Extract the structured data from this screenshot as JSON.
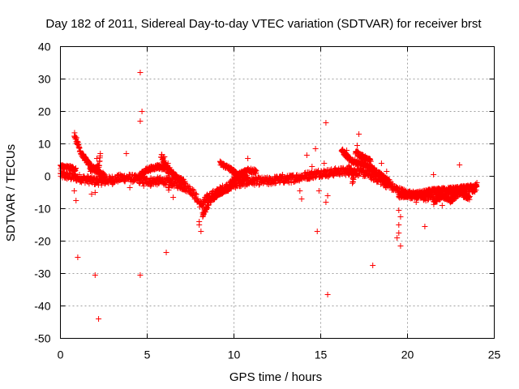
{
  "chart_data": {
    "type": "scatter",
    "title": "Day 182 of 2011, Sidereal Day-to-day VTEC variation (SDTVAR) for receiver brst",
    "xlabel": "GPS time / hours",
    "ylabel": "SDTVAR / TECUs",
    "xlim": [
      0,
      25
    ],
    "ylim": [
      -50,
      40
    ],
    "xticks": [
      0,
      5,
      10,
      15,
      20,
      25
    ],
    "yticks": [
      -50,
      -40,
      -30,
      -20,
      -10,
      0,
      10,
      20,
      30,
      40
    ],
    "grid": true,
    "marker": "+",
    "color": "#ff0000",
    "series": [
      {
        "name": "SDTVAR",
        "trend": [
          [
            0.0,
            0.5
          ],
          [
            0.5,
            0.0
          ],
          [
            1.0,
            -0.5
          ],
          [
            1.5,
            -1.0
          ],
          [
            2.0,
            -1.5
          ],
          [
            2.5,
            -1.5
          ],
          [
            3.0,
            -1.0
          ],
          [
            3.5,
            -0.5
          ],
          [
            4.0,
            -0.5
          ],
          [
            4.5,
            -1.0
          ],
          [
            5.0,
            -1.5
          ],
          [
            5.5,
            -1.5
          ],
          [
            6.0,
            -1.5
          ],
          [
            6.5,
            -2.0
          ],
          [
            7.0,
            -3.0
          ],
          [
            7.5,
            -4.0
          ],
          [
            8.1,
            -9.0
          ],
          [
            8.5,
            -6.5
          ],
          [
            9.0,
            -5.0
          ],
          [
            9.5,
            -3.5
          ],
          [
            10.0,
            -2.5
          ],
          [
            10.5,
            -2.0
          ],
          [
            11.0,
            -1.5
          ],
          [
            11.5,
            -1.5
          ],
          [
            12.0,
            -1.5
          ],
          [
            12.5,
            -1.0
          ],
          [
            13.0,
            -1.0
          ],
          [
            13.5,
            -0.5
          ],
          [
            14.0,
            0.0
          ],
          [
            14.5,
            0.5
          ],
          [
            15.0,
            1.0
          ],
          [
            15.5,
            1.0
          ],
          [
            16.0,
            1.5
          ],
          [
            16.5,
            1.5
          ],
          [
            17.0,
            1.5
          ],
          [
            17.5,
            1.0
          ],
          [
            18.0,
            0.0
          ],
          [
            18.5,
            -1.5
          ],
          [
            19.0,
            -3.0
          ],
          [
            19.5,
            -4.5
          ],
          [
            20.0,
            -5.5
          ],
          [
            20.5,
            -6.0
          ],
          [
            21.0,
            -6.5
          ],
          [
            21.5,
            -6.0
          ],
          [
            22.0,
            -5.5
          ],
          [
            22.5,
            -5.0
          ],
          [
            23.0,
            -4.5
          ],
          [
            23.5,
            -4.0
          ],
          [
            24.0,
            -3.5
          ]
        ],
        "arcs": [
          [
            [
              0.8,
              13.0
            ],
            [
              1.2,
              7.0
            ],
            [
              1.8,
              2.5
            ],
            [
              2.6,
              0.0
            ]
          ],
          [
            [
              0.0,
              3.0
            ],
            [
              0.6,
              2.5
            ],
            [
              0.9,
              2.0
            ]
          ],
          [
            [
              1.7,
              2.0
            ],
            [
              2.2,
              3.0
            ],
            [
              2.3,
              7.0
            ]
          ],
          [
            [
              4.5,
              0.0
            ],
            [
              5.0,
              2.0
            ],
            [
              5.6,
              3.0
            ],
            [
              6.2,
              2.5
            ],
            [
              6.6,
              0.0
            ],
            [
              7.2,
              -2.0
            ]
          ],
          [
            [
              5.8,
              6.5
            ],
            [
              6.1,
              3.0
            ],
            [
              6.3,
              -1.0
            ],
            [
              6.2,
              -5.0
            ]
          ],
          [
            [
              8.2,
              -12.0
            ],
            [
              8.6,
              -7.5
            ],
            [
              9.2,
              -5.0
            ],
            [
              9.8,
              -3.5
            ]
          ],
          [
            [
              9.2,
              4.0
            ],
            [
              9.7,
              2.5
            ],
            [
              10.2,
              0.5
            ],
            [
              10.8,
              -0.5
            ]
          ],
          [
            [
              9.8,
              -2.0
            ],
            [
              10.3,
              0.5
            ],
            [
              10.8,
              2.0
            ],
            [
              11.3,
              1.5
            ]
          ],
          [
            [
              16.2,
              8.0
            ],
            [
              16.7,
              5.0
            ],
            [
              17.2,
              4.0
            ],
            [
              17.8,
              3.0
            ],
            [
              18.4,
              0.5
            ],
            [
              19.0,
              -2.0
            ]
          ],
          [
            [
              16.6,
              3.0
            ],
            [
              16.9,
              0.5
            ],
            [
              16.8,
              -3.0
            ]
          ],
          [
            [
              17.0,
              7.5
            ],
            [
              17.4,
              6.0
            ],
            [
              17.9,
              4.5
            ]
          ],
          [
            [
              19.5,
              -6.0
            ],
            [
              20.5,
              -5.5
            ],
            [
              21.5,
              -4.5
            ],
            [
              22.5,
              -4.0
            ],
            [
              23.5,
              -3.5
            ],
            [
              24.0,
              -3.0
            ]
          ],
          [
            [
              21.5,
              -8.0
            ],
            [
              22.0,
              -6.0
            ],
            [
              22.5,
              -7.5
            ],
            [
              23.0,
              -5.0
            ],
            [
              23.6,
              -7.0
            ]
          ]
        ],
        "outliers": [
          [
            0.9,
            -7.5
          ],
          [
            0.8,
            -4.5
          ],
          [
            1.8,
            -5.5
          ],
          [
            2.0,
            -5.0
          ],
          [
            2.1,
            5.5
          ],
          [
            2.3,
            7.0
          ],
          [
            3.8,
            7.0
          ],
          [
            3.0,
            -2.5
          ],
          [
            4.0,
            -3.5
          ],
          [
            4.6,
            32.0
          ],
          [
            4.7,
            20.0
          ],
          [
            4.6,
            17.0
          ],
          [
            4.6,
            -30.5
          ],
          [
            4.8,
            -3.0
          ],
          [
            5.2,
            -3.0
          ],
          [
            6.0,
            6.0
          ],
          [
            6.2,
            4.0
          ],
          [
            6.5,
            -6.5
          ],
          [
            6.1,
            -23.5
          ],
          [
            1.0,
            -25.0
          ],
          [
            2.0,
            -30.5
          ],
          [
            2.2,
            -44.0
          ],
          [
            7.5,
            -5.5
          ],
          [
            8.0,
            -14.0
          ],
          [
            8.1,
            -17.0
          ],
          [
            8.2,
            -12.5
          ],
          [
            8.0,
            -15.0
          ],
          [
            10.8,
            5.5
          ],
          [
            12.0,
            -2.5
          ],
          [
            12.8,
            0.5
          ],
          [
            13.3,
            -2.0
          ],
          [
            13.8,
            -4.5
          ],
          [
            13.9,
            -7.0
          ],
          [
            14.2,
            6.5
          ],
          [
            14.5,
            3.0
          ],
          [
            14.7,
            8.5
          ],
          [
            14.8,
            -17.0
          ],
          [
            14.9,
            -4.5
          ],
          [
            15.2,
            4.0
          ],
          [
            15.3,
            16.5
          ],
          [
            15.4,
            -6.0
          ],
          [
            15.3,
            -8.0
          ],
          [
            15.4,
            -36.5
          ],
          [
            16.5,
            8.0
          ],
          [
            17.2,
            13.0
          ],
          [
            17.1,
            9.5
          ],
          [
            18.0,
            -27.5
          ],
          [
            18.5,
            4.0
          ],
          [
            18.8,
            1.5
          ],
          [
            19.5,
            -10.5
          ],
          [
            19.6,
            -12.5
          ],
          [
            19.5,
            -15.0
          ],
          [
            19.5,
            -17.5
          ],
          [
            19.6,
            -21.5
          ],
          [
            19.4,
            -19.0
          ],
          [
            20.5,
            -8.0
          ],
          [
            20.8,
            -6.0
          ],
          [
            21.0,
            -15.5
          ],
          [
            21.5,
            0.5
          ],
          [
            22.0,
            -9.0
          ],
          [
            22.5,
            -7.5
          ],
          [
            23.0,
            3.5
          ],
          [
            23.5,
            -6.0
          ],
          [
            24.0,
            -2.0
          ]
        ]
      }
    ]
  }
}
